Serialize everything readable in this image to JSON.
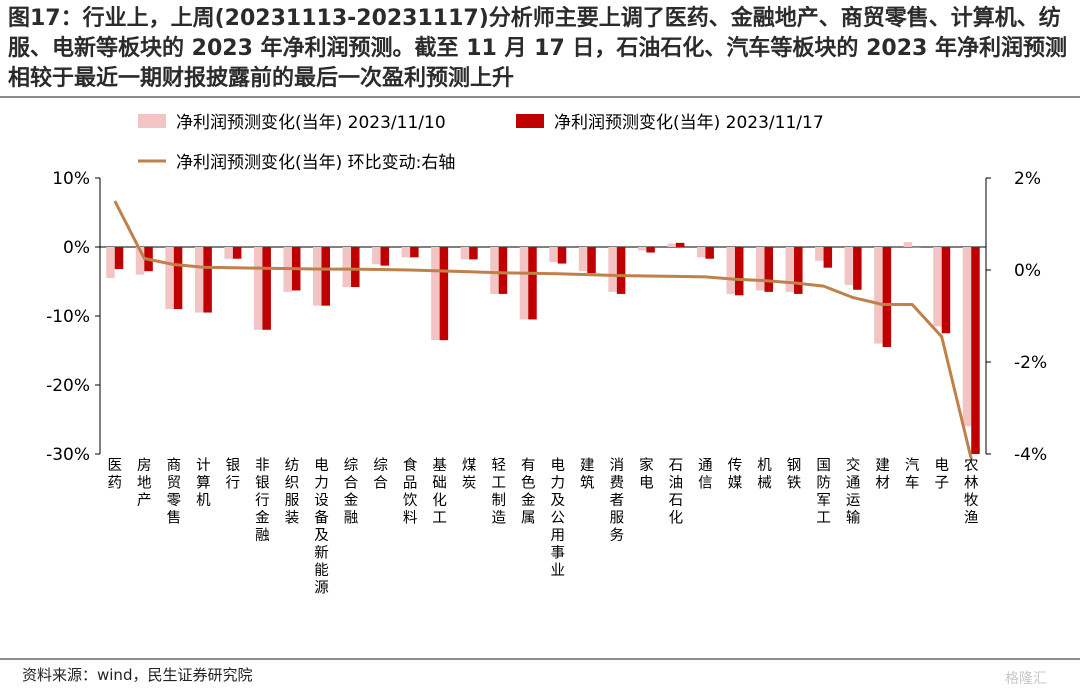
{
  "title": "图17：行业上，上周(20231113-20231117)分析师主要上调了医药、金融地产、商贸零售、计算机、纺服、电新等板块的 2023 年净利润预测。截至 11 月 17 日，石油石化、汽车等板块的 2023 年净利润预测相较于最近一期财报披露前的最后一次盈利预测上升",
  "source": "资料来源：wind，民生证券研究院",
  "watermark": "格隆汇",
  "chart_data": {
    "type": "bar",
    "categories": [
      "医药",
      "房地产",
      "商贸零售",
      "计算机",
      "银行",
      "非银行金融",
      "纺织服装",
      "电力设备及新能源",
      "综合金融",
      "综合",
      "食品饮料",
      "基础化工",
      "煤炭",
      "轻工制造",
      "有色金属",
      "电力及公用事业",
      "建筑",
      "消费者服务",
      "家电",
      "石油石化",
      "通信",
      "传媒",
      "机械",
      "钢铁",
      "国防军工",
      "交通运输",
      "建材",
      "汽车",
      "电子",
      "农林牧渔"
    ],
    "series": [
      {
        "name": "净利润预测变化(当年) 2023/11/10",
        "axis": "left",
        "chart": "bar",
        "color": "#f2c4c4",
        "values": [
          -4.5,
          -4,
          -9,
          -9.5,
          -1.7,
          -12,
          -6.5,
          -8.5,
          -5.8,
          -2.5,
          -1.5,
          -13.5,
          -1.8,
          -6.8,
          -10.5,
          -2.2,
          -3.5,
          -6.5,
          -0.5,
          0.5,
          -1.5,
          -6.8,
          -6.3,
          -6.5,
          -2,
          -5.5,
          -14,
          0.7,
          -11.5,
          -26
        ]
      },
      {
        "name": "净利润预测变化(当年) 2023/11/17",
        "axis": "left",
        "chart": "bar",
        "color": "#c00000",
        "values": [
          -3.2,
          -3.5,
          -9,
          -9.5,
          -1.7,
          -12,
          -6.3,
          -8.5,
          -5.8,
          -2.7,
          -1.5,
          -13.5,
          -1.8,
          -6.8,
          -10.5,
          -2.4,
          -3.8,
          -6.8,
          -0.8,
          0.6,
          -1.7,
          -7,
          -6.5,
          -6.8,
          -3,
          -6.2,
          -14.5,
          0,
          -12.5,
          -30
        ]
      },
      {
        "name": "净利润预测变化(当年) 环比变动:右轴",
        "axis": "right",
        "chart": "line",
        "color": "#c0804a",
        "values": [
          1.5,
          0.25,
          0.12,
          0.06,
          0.05,
          0.04,
          0.03,
          0.02,
          0.02,
          0.01,
          0,
          -0.02,
          -0.04,
          -0.06,
          -0.07,
          -0.08,
          -0.1,
          -0.12,
          -0.13,
          -0.14,
          -0.15,
          -0.2,
          -0.23,
          -0.28,
          -0.35,
          -0.6,
          -0.75,
          -0.75,
          -1.45,
          -4.1
        ]
      }
    ],
    "y_left": {
      "min": -30,
      "max": 10,
      "ticks": [
        "10%",
        "0%",
        "-10%",
        "-20%",
        "-30%"
      ]
    },
    "y_right": {
      "min": -4,
      "max": 2,
      "ticks": [
        "2%",
        "0%",
        "-2%",
        "-4%"
      ]
    },
    "grid": false,
    "legend_position": "top"
  }
}
